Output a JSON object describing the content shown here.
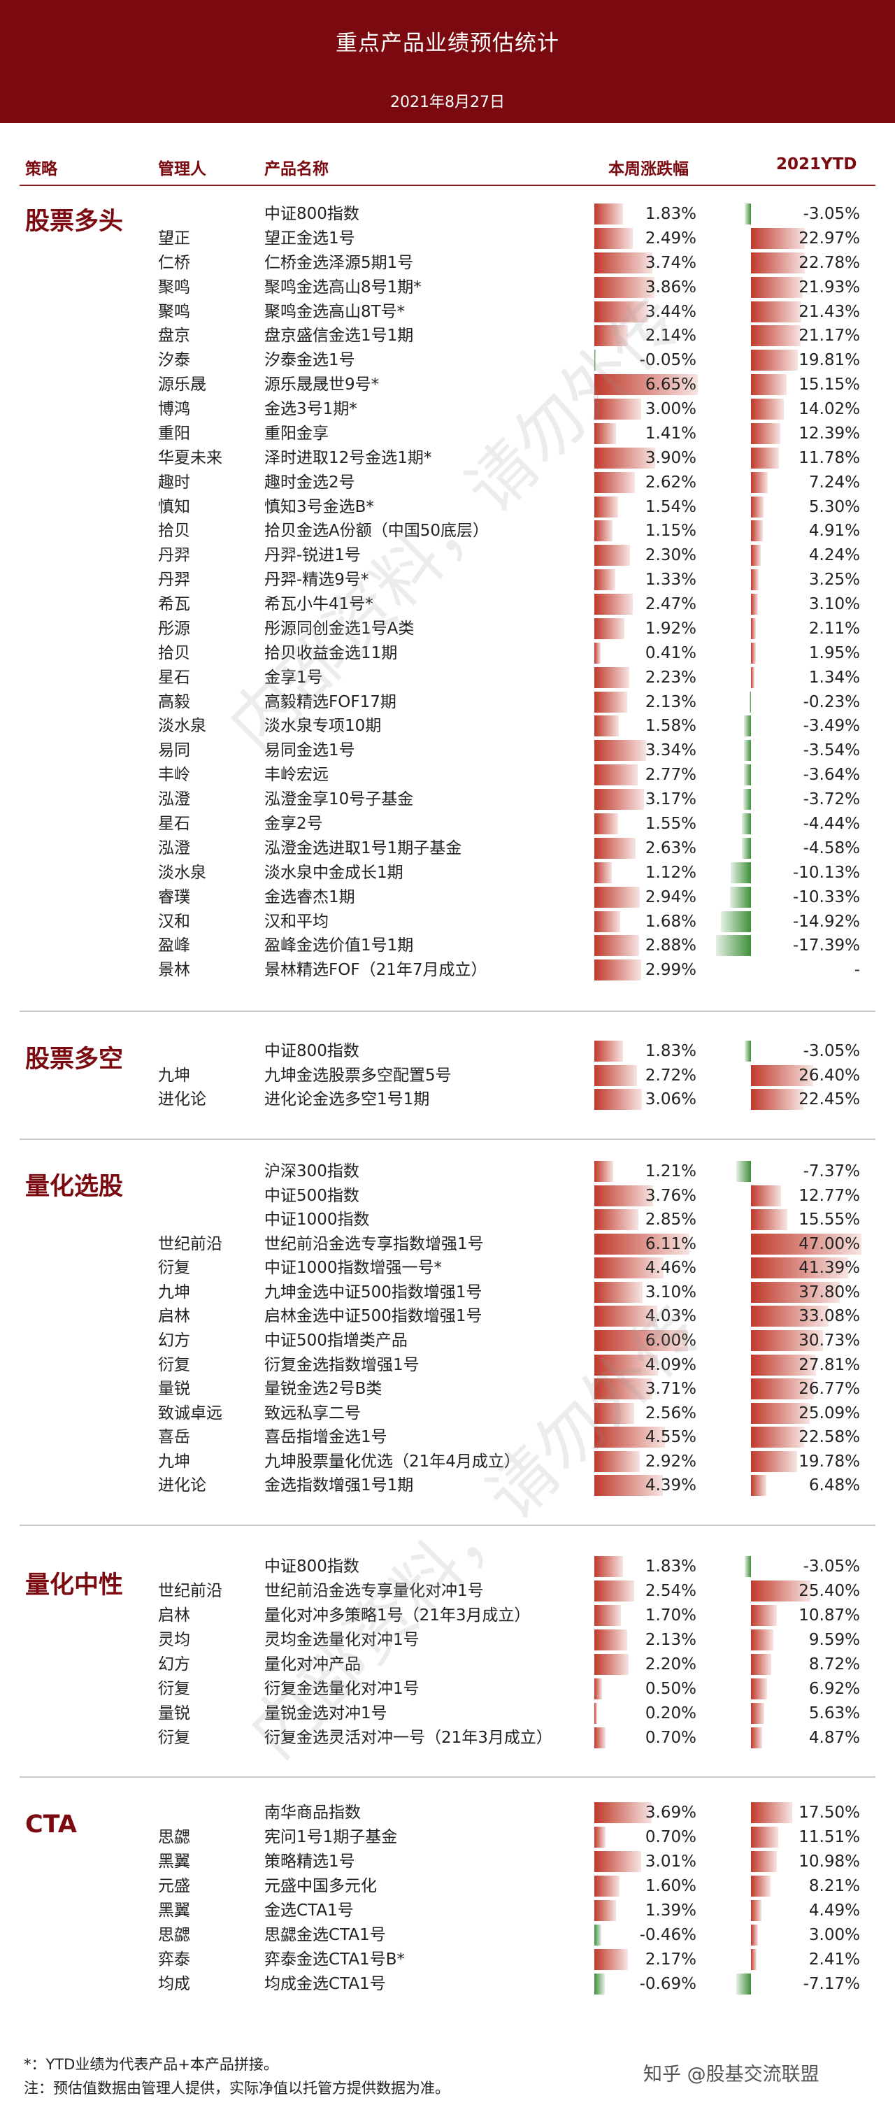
{
  "header": {
    "title": "重点产品业绩预估统计",
    "date": "2021年8月27日"
  },
  "columns": {
    "strategy": "策略",
    "manager": "管理人",
    "product": "产品名称",
    "weekly": "本周涨跌幅",
    "ytd": "2021YTD"
  },
  "colors": {
    "header_bg": "#7a0a0f",
    "positive_bar": "#c0392b",
    "negative_bar": "#3f8f3a"
  },
  "scale": {
    "weekly_max": 6.65,
    "ytd_pos_max": 47.0,
    "ytd_neg_max": 17.39
  },
  "sections": [
    {
      "name": "股票多头",
      "rows": [
        [
          "",
          "中证800指数",
          "1.83%",
          "-3.05%",
          1.83,
          -3.05
        ],
        [
          "望正",
          "望正金选1号",
          "2.49%",
          "22.97%",
          2.49,
          22.97
        ],
        [
          "仁桥",
          "仁桥金选泽源5期1号",
          "3.74%",
          "22.78%",
          3.74,
          22.78
        ],
        [
          "聚鸣",
          "聚鸣金选高山8号1期*",
          "3.86%",
          "21.93%",
          3.86,
          21.93
        ],
        [
          "聚鸣",
          "聚鸣金选高山8T号*",
          "3.44%",
          "21.43%",
          3.44,
          21.43
        ],
        [
          "盘京",
          "盘京盛信金选1号1期",
          "2.14%",
          "21.17%",
          2.14,
          21.17
        ],
        [
          "汐泰",
          "汐泰金选1号",
          "-0.05%",
          "19.81%",
          -0.05,
          19.81
        ],
        [
          "源乐晟",
          "源乐晟晟世9号*",
          "6.65%",
          "15.15%",
          6.65,
          15.15
        ],
        [
          "博鸿",
          "金选3号1期*",
          "3.00%",
          "14.02%",
          3.0,
          14.02
        ],
        [
          "重阳",
          "重阳金享",
          "1.41%",
          "12.39%",
          1.41,
          12.39
        ],
        [
          "华夏未来",
          "泽时进取12号金选1期*",
          "3.90%",
          "11.78%",
          3.9,
          11.78
        ],
        [
          "趣时",
          "趣时金选2号",
          "2.62%",
          "7.24%",
          2.62,
          7.24
        ],
        [
          "慎知",
          "慎知3号金选B*",
          "1.54%",
          "5.30%",
          1.54,
          5.3
        ],
        [
          "拾贝",
          "拾贝金选A份额（中国50底层）",
          "1.15%",
          "4.91%",
          1.15,
          4.91
        ],
        [
          "丹羿",
          "丹羿-锐进1号",
          "2.30%",
          "4.24%",
          2.3,
          4.24
        ],
        [
          "丹羿",
          "丹羿-精选9号*",
          "1.33%",
          "3.25%",
          1.33,
          3.25
        ],
        [
          "希瓦",
          "希瓦小牛41号*",
          "2.47%",
          "3.10%",
          2.47,
          3.1
        ],
        [
          "彤源",
          "彤源同创金选1号A类",
          "1.92%",
          "2.11%",
          1.92,
          2.11
        ],
        [
          "拾贝",
          "拾贝收益金选11期",
          "0.41%",
          "1.95%",
          0.41,
          1.95
        ],
        [
          "星石",
          "金享1号",
          "2.23%",
          "1.34%",
          2.23,
          1.34
        ],
        [
          "高毅",
          "高毅精选FOF17期",
          "2.13%",
          "-0.23%",
          2.13,
          -0.23
        ],
        [
          "淡水泉",
          "淡水泉专项10期",
          "1.58%",
          "-3.49%",
          1.58,
          -3.49
        ],
        [
          "易同",
          "易同金选1号",
          "3.34%",
          "-3.54%",
          3.34,
          -3.54
        ],
        [
          "丰岭",
          "丰岭宏远",
          "2.77%",
          "-3.64%",
          2.77,
          -3.64
        ],
        [
          "泓澄",
          "泓澄金享10号子基金",
          "3.17%",
          "-3.72%",
          3.17,
          -3.72
        ],
        [
          "星石",
          "金享2号",
          "1.55%",
          "-4.44%",
          1.55,
          -4.44
        ],
        [
          "泓澄",
          "泓澄金选进取1号1期子基金",
          "2.63%",
          "-4.58%",
          2.63,
          -4.58
        ],
        [
          "淡水泉",
          "淡水泉中金成长1期",
          "1.12%",
          "-10.13%",
          1.12,
          -10.13
        ],
        [
          "睿璞",
          "金选睿杰1期",
          "2.94%",
          "-10.33%",
          2.94,
          -10.33
        ],
        [
          "汉和",
          "汉和平均",
          "1.68%",
          "-14.92%",
          1.68,
          -14.92
        ],
        [
          "盈峰",
          "盈峰金选价值1号1期",
          "2.88%",
          "-17.39%",
          2.88,
          -17.39
        ],
        [
          "景林",
          "景林精选FOF（21年7月成立）",
          "2.99%",
          "-",
          2.99,
          null
        ]
      ]
    },
    {
      "name": "股票多空",
      "rows": [
        [
          "",
          "中证800指数",
          "1.83%",
          "-3.05%",
          1.83,
          -3.05
        ],
        [
          "九坤",
          "九坤金选股票多空配置5号",
          "2.72%",
          "26.40%",
          2.72,
          26.4
        ],
        [
          "进化论",
          "进化论金选多空1号1期",
          "3.06%",
          "22.45%",
          3.06,
          22.45
        ]
      ]
    },
    {
      "name": "量化选股",
      "rows": [
        [
          "",
          "沪深300指数",
          "1.21%",
          "-7.37%",
          1.21,
          -7.37
        ],
        [
          "",
          "中证500指数",
          "3.76%",
          "12.77%",
          3.76,
          12.77
        ],
        [
          "",
          "中证1000指数",
          "2.85%",
          "15.55%",
          2.85,
          15.55
        ],
        [
          "世纪前沿",
          "世纪前沿金选专享指数增强1号",
          "6.11%",
          "47.00%",
          6.11,
          47.0
        ],
        [
          "衍复",
          "中证1000指数增强一号*",
          "4.46%",
          "41.39%",
          4.46,
          41.39
        ],
        [
          "九坤",
          "九坤金选中证500指数增强1号",
          "3.10%",
          "37.80%",
          3.1,
          37.8
        ],
        [
          "启林",
          "启林金选中证500指数增强1号",
          "4.03%",
          "33.08%",
          4.03,
          33.08
        ],
        [
          "幻方",
          "中证500指增类产品",
          "6.00%",
          "30.73%",
          6.0,
          30.73
        ],
        [
          "衍复",
          "衍复金选指数增强1号",
          "4.09%",
          "27.81%",
          4.09,
          27.81
        ],
        [
          "量锐",
          "量锐金选2号B类",
          "3.71%",
          "26.77%",
          3.71,
          26.77
        ],
        [
          "致诚卓远",
          "致远私享二号",
          "2.56%",
          "25.09%",
          2.56,
          25.09
        ],
        [
          "喜岳",
          "喜岳指增金选1号",
          "4.55%",
          "22.58%",
          4.55,
          22.58
        ],
        [
          "九坤",
          "九坤股票量化优选（21年4月成立）",
          "2.92%",
          "19.78%",
          2.92,
          19.78
        ],
        [
          "进化论",
          "金选指数增强1号1期",
          "4.39%",
          "6.48%",
          4.39,
          6.48
        ]
      ]
    },
    {
      "name": "量化中性",
      "rows": [
        [
          "",
          "中证800指数",
          "1.83%",
          "-3.05%",
          1.83,
          -3.05
        ],
        [
          "世纪前沿",
          "世纪前沿金选专享量化对冲1号",
          "2.54%",
          "25.40%",
          2.54,
          25.4
        ],
        [
          "启林",
          "量化对冲多策略1号（21年3月成立）",
          "1.70%",
          "10.87%",
          1.7,
          10.87
        ],
        [
          "灵均",
          "灵均金选量化对冲1号",
          "2.13%",
          "9.59%",
          2.13,
          9.59
        ],
        [
          "幻方",
          "量化对冲产品",
          "2.20%",
          "8.72%",
          2.2,
          8.72
        ],
        [
          "衍复",
          "衍复金选量化对冲1号",
          "0.50%",
          "6.92%",
          0.5,
          6.92
        ],
        [
          "量锐",
          "量锐金选对冲1号",
          "0.20%",
          "5.63%",
          0.2,
          5.63
        ],
        [
          "衍复",
          "衍复金选灵活对冲一号（21年3月成立）",
          "0.70%",
          "4.87%",
          0.7,
          4.87
        ]
      ]
    },
    {
      "name": "CTA",
      "rows": [
        [
          "",
          "南华商品指数",
          "3.69%",
          "17.50%",
          3.69,
          17.5
        ],
        [
          "思勰",
          "宪问1号1期子基金",
          "0.70%",
          "11.51%",
          0.7,
          11.51
        ],
        [
          "黑翼",
          "策略精选1号",
          "3.01%",
          "10.98%",
          3.01,
          10.98
        ],
        [
          "元盛",
          "元盛中国多元化",
          "1.60%",
          "8.21%",
          1.6,
          8.21
        ],
        [
          "黑翼",
          "金选CTA1号",
          "1.39%",
          "4.49%",
          1.39,
          4.49
        ],
        [
          "思勰",
          "思勰金选CTA1号",
          "-0.46%",
          "3.00%",
          -0.46,
          3.0
        ],
        [
          "弈泰",
          "弈泰金选CTA1号B*",
          "2.17%",
          "2.41%",
          2.17,
          2.41
        ],
        [
          "均成",
          "均成金选CTA1号",
          "-0.69%",
          "-7.17%",
          -0.69,
          -7.17
        ]
      ]
    }
  ],
  "footnotes": [
    "*：YTD业绩为代表产品+本产品拼接。",
    "注：预估值数据由管理人提供，实际净值以托管方提供数据为准。"
  ],
  "watermark": "内部资料，请勿外传",
  "source": "知乎 @股基交流联盟"
}
